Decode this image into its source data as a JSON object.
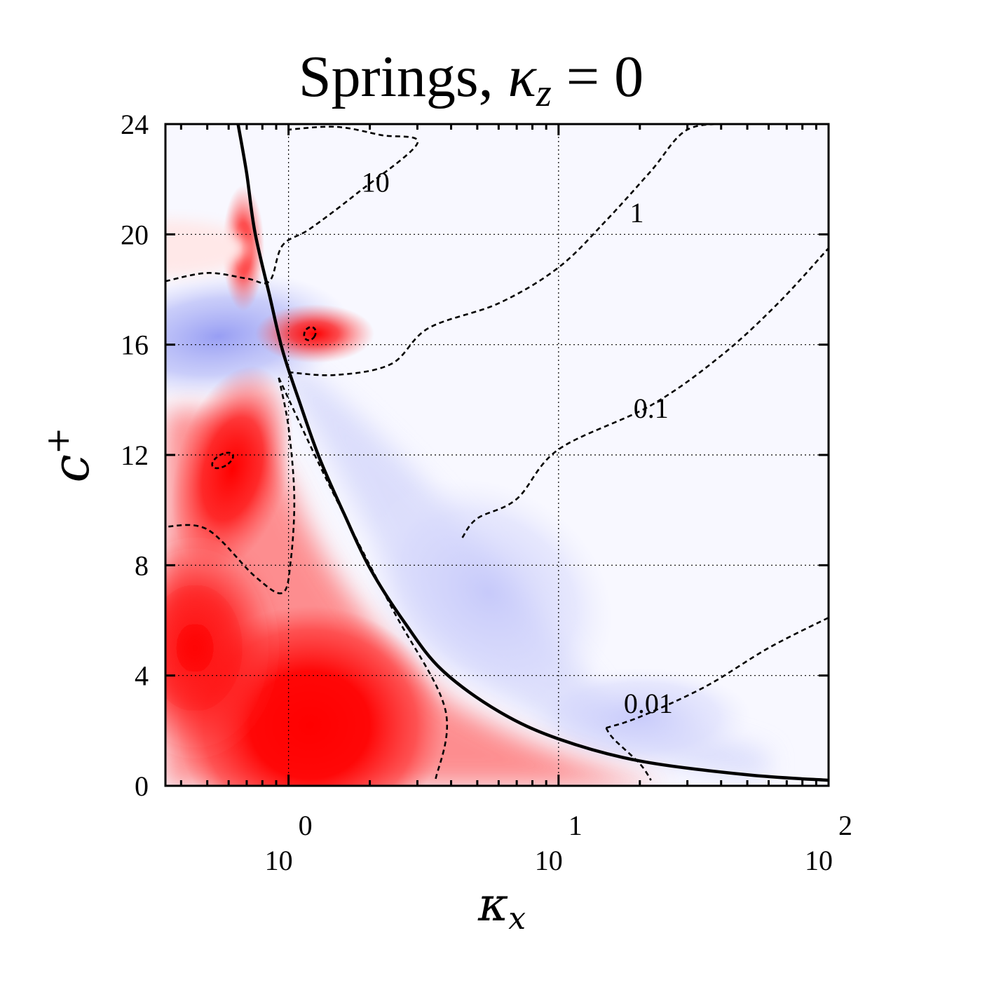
{
  "chart_data": {
    "type": "heatmap",
    "title": {
      "prefix": "Springs, ",
      "var_base": "κ",
      "var_sub": "z",
      "suffix": " = 0"
    },
    "xlabel": {
      "base": "κ",
      "sub": "x"
    },
    "ylabel": {
      "base": "c",
      "sup": "+"
    },
    "x_scale": "log",
    "xlim": [
      0.35,
      100
    ],
    "ylim": [
      0,
      24
    ],
    "x_ticks": [
      {
        "value": 1,
        "base": "10",
        "exp": "0"
      },
      {
        "value": 10,
        "base": "10",
        "exp": "1"
      },
      {
        "value": 100,
        "base": "10",
        "exp": "2"
      }
    ],
    "y_ticks": [
      {
        "value": 0,
        "label": "0"
      },
      {
        "value": 4,
        "label": "4"
      },
      {
        "value": 8,
        "label": "8"
      },
      {
        "value": 12,
        "label": "12"
      },
      {
        "value": 16,
        "label": "16"
      },
      {
        "value": 20,
        "label": "20"
      },
      {
        "value": 24,
        "label": "24"
      }
    ],
    "grid": true,
    "colormap": {
      "positive": "#ff0000",
      "zero": "#f8f8ff",
      "negative": "#9aa0f5"
    },
    "colors": {
      "solid_curve": "#000000",
      "contour_lines": "#000000"
    },
    "solid_curve": {
      "description_free": true,
      "points": [
        [
          0.65,
          24.0
        ],
        [
          0.7,
          22.2
        ],
        [
          0.75,
          20.1
        ],
        [
          0.85,
          17.8
        ],
        [
          0.95,
          15.8
        ],
        [
          1.1,
          13.9
        ],
        [
          1.3,
          11.9
        ],
        [
          1.6,
          9.9
        ],
        [
          2.0,
          7.9
        ],
        [
          2.7,
          5.9
        ],
        [
          3.7,
          4.2
        ],
        [
          6.0,
          2.7
        ],
        [
          10.0,
          1.7
        ],
        [
          20.0,
          0.9
        ],
        [
          50.0,
          0.4
        ],
        [
          100.0,
          0.2
        ]
      ]
    },
    "contours": [
      {
        "label": "10",
        "label_at": [
          2.1,
          21.9
        ],
        "points": [
          [
            0.35,
            18.3
          ],
          [
            0.5,
            18.6
          ],
          [
            0.7,
            18.4
          ],
          [
            0.85,
            18.3
          ],
          [
            0.95,
            19.6
          ],
          [
            1.2,
            20.2
          ],
          [
            1.8,
            21.5
          ],
          [
            3.0,
            23.3
          ],
          [
            2.2,
            23.6
          ],
          [
            1.5,
            23.9
          ],
          [
            1.0,
            23.8
          ]
        ]
      },
      {
        "label": "1",
        "label_at": [
          19.5,
          20.8
        ],
        "points": [
          [
            1.0,
            15.0
          ],
          [
            1.5,
            14.9
          ],
          [
            2.4,
            15.3
          ],
          [
            3.3,
            16.6
          ],
          [
            6.0,
            17.5
          ],
          [
            10.0,
            18.8
          ],
          [
            15.0,
            20.5
          ],
          [
            22.0,
            22.3
          ],
          [
            30.0,
            23.8
          ],
          [
            45.0,
            24.0
          ]
        ]
      },
      {
        "label": "0.1",
        "label_at": [
          22.0,
          13.7
        ],
        "points": [
          [
            0.92,
            14.8
          ],
          [
            1.0,
            13.0
          ],
          [
            1.05,
            10.5
          ],
          [
            1.02,
            8.2
          ],
          [
            0.95,
            7.0
          ],
          [
            0.75,
            7.6
          ],
          [
            0.5,
            9.3
          ],
          [
            0.35,
            9.4
          ]
        ]
      },
      {
        "label": "0.1",
        "label_at": [
          22.0,
          13.7
        ],
        "points": [
          [
            0.92,
            14.8
          ],
          [
            1.4,
            11.0
          ],
          [
            2.4,
            6.5
          ],
          [
            3.8,
            2.8
          ],
          [
            3.5,
            0.2
          ]
        ]
      },
      {
        "label": "0.1",
        "label_at": [
          22.0,
          13.7
        ],
        "points": [
          [
            4.4,
            9.0
          ],
          [
            5.0,
            9.7
          ],
          [
            7.0,
            10.4
          ],
          [
            10.0,
            12.2
          ],
          [
            22.0,
            13.8
          ],
          [
            40.0,
            15.6
          ],
          [
            65.0,
            17.5
          ],
          [
            100.0,
            19.5
          ]
        ]
      },
      {
        "label": "0.01",
        "label_at": [
          21.5,
          3.0
        ],
        "points": [
          [
            15.0,
            2.1
          ],
          [
            16.0,
            1.7
          ],
          [
            20.0,
            0.8
          ],
          [
            22.0,
            0.2
          ]
        ]
      },
      {
        "label": "0.01",
        "label_at": [
          21.5,
          3.0
        ],
        "points": [
          [
            15.0,
            2.1
          ],
          [
            20.0,
            2.5
          ],
          [
            35.0,
            3.6
          ],
          [
            60.0,
            5.0
          ],
          [
            100.0,
            6.1
          ]
        ]
      }
    ],
    "small_contours": [
      {
        "center": [
          0.57,
          11.8
        ],
        "rx_decades": 0.022,
        "ry": 0.42
      },
      {
        "center": [
          1.2,
          16.4
        ],
        "rx_decades": 0.02,
        "ry": 0.25
      }
    ],
    "contour_labels": [
      "10",
      "1",
      "0.1",
      "0.01"
    ]
  }
}
